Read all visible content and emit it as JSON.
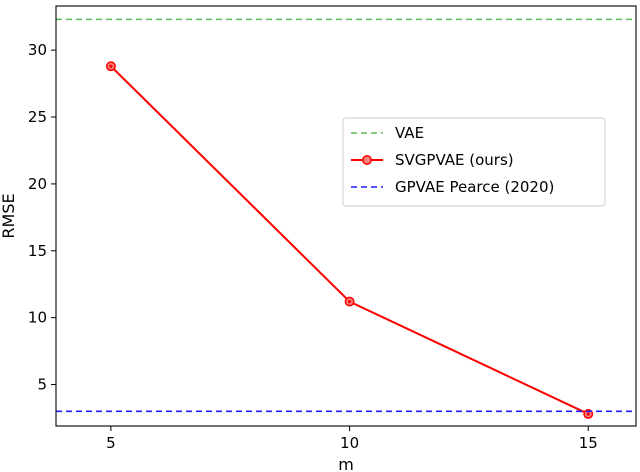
{
  "chart_data": {
    "type": "line",
    "xlabel": "m",
    "ylabel": "RMSE",
    "x": [
      5,
      10,
      15
    ],
    "xticks": [
      "5",
      "10",
      "15"
    ],
    "yticks": [
      "5",
      "10",
      "15",
      "20",
      "25",
      "30"
    ],
    "xlim": [
      3.85,
      16.0
    ],
    "ylim": [
      1.9,
      33.3
    ],
    "grid": false,
    "legend_position": "center-right",
    "series": [
      {
        "name": "VAE",
        "style": "dashed",
        "color": "#5cb85c",
        "constant": 32.3
      },
      {
        "name": "SVGPVAE (ours)",
        "style": "solid-marker",
        "color": "#ff0000",
        "values": [
          28.8,
          11.2,
          2.8
        ]
      },
      {
        "name": "GPVAE Pearce (2020)",
        "style": "dashed",
        "color": "#1f1fff",
        "constant": 3.0
      }
    ]
  }
}
